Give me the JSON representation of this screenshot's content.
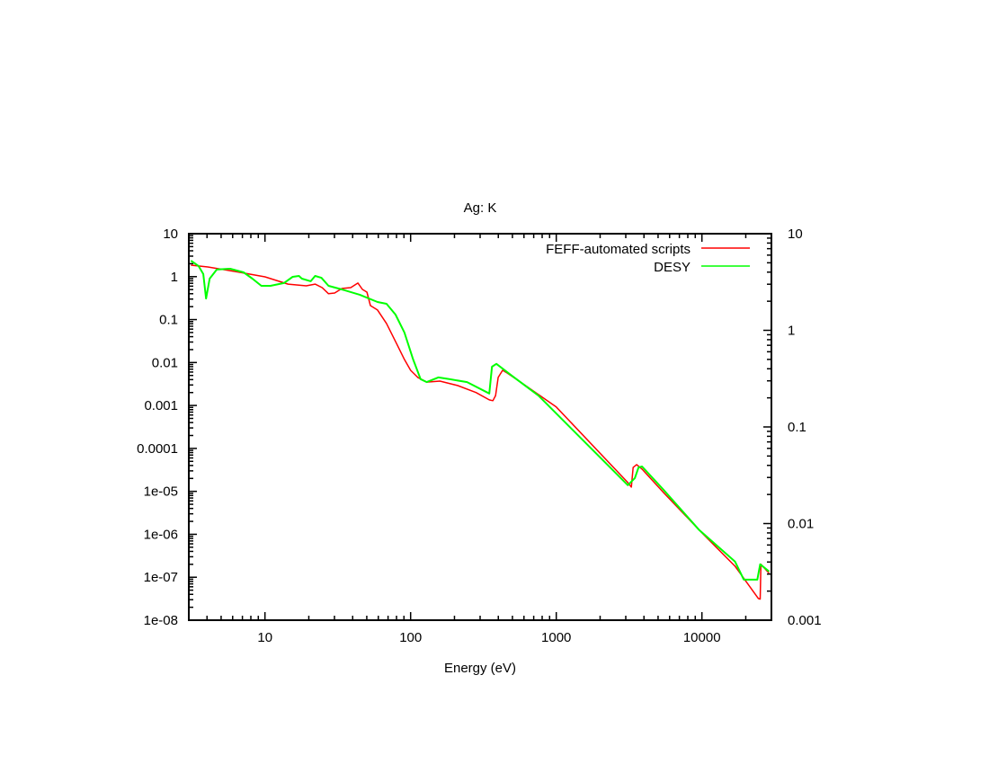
{
  "chart_data": {
    "type": "line",
    "title": "Ag: K",
    "xlabel": "Energy (eV)",
    "ylabel": "",
    "xscale": "log",
    "yscale": "log",
    "xlim": [
      3,
      30000
    ],
    "ylim": [
      1e-08,
      10
    ],
    "y2lim": [
      0.001,
      10
    ],
    "x_ticks": [
      "10",
      "100",
      "1000",
      "10000"
    ],
    "y_ticks": [
      "10",
      "1",
      "0.1",
      "0.01",
      "0.001",
      "0.0001",
      "1e-05",
      "1e-06",
      "1e-07",
      "1e-08"
    ],
    "y2_ticks": [
      "10",
      "1",
      "0.1",
      "0.01",
      "0.001"
    ],
    "grid": false,
    "legend_position": "top-right",
    "series": [
      {
        "name": "FEFF-automated scripts",
        "color": "#ff0000",
        "x": [
          3.1,
          4.05,
          6.2,
          10,
          14.4,
          19.2,
          22.1,
          24.7,
          27.3,
          30.1,
          33.7,
          38.8,
          43.5,
          46.7,
          50.1,
          53,
          59.3,
          68.3,
          78.7,
          90.6,
          100,
          112,
          129,
          159,
          211,
          281,
          347,
          367,
          383,
          399,
          428,
          460,
          569,
          1000,
          3100,
          3275,
          3370,
          3565,
          3880,
          5450,
          9600,
          16900,
          24400,
          25100,
          25400,
          28900
        ],
        "y": [
          1.85,
          1.68,
          1.32,
          0.99,
          0.67,
          0.61,
          0.67,
          0.556,
          0.4,
          0.416,
          0.53,
          0.556,
          0.71,
          0.505,
          0.437,
          0.212,
          0.167,
          0.081,
          0.031,
          0.0118,
          0.0066,
          0.0045,
          0.0035,
          0.0037,
          0.0029,
          0.002,
          0.00135,
          0.00129,
          0.0017,
          0.0045,
          0.0066,
          0.0057,
          0.0035,
          0.00092,
          1.6e-05,
          1.26e-05,
          3.6e-05,
          4.2e-05,
          3.3e-05,
          9.4e-06,
          1.25e-06,
          1.8e-07,
          3.2e-08,
          3.1e-08,
          2e-07,
          1.24e-07
        ]
      },
      {
        "name": "DESY",
        "color": "#00ff00",
        "x": [
          3.1,
          3.5,
          3.77,
          3.94,
          4.17,
          4.67,
          5.77,
          7.13,
          8.2,
          9.45,
          10.9,
          13.5,
          15.5,
          17.1,
          17.9,
          20.6,
          22.1,
          24.4,
          27.3,
          33.7,
          44.7,
          59.3,
          68.3,
          78.7,
          90.6,
          104,
          117,
          129,
          155,
          184,
          244,
          347,
          362,
          388,
          493,
          754,
          3100,
          3465,
          3670,
          3880,
          5450,
          9600,
          16900,
          19400,
          24000,
          25100,
          28900
        ],
        "y": [
          2.35,
          1.77,
          1.15,
          0.31,
          0.9,
          1.46,
          1.53,
          1.26,
          0.9,
          0.61,
          0.61,
          0.71,
          0.99,
          1.04,
          0.9,
          0.78,
          1.04,
          0.94,
          0.61,
          0.505,
          0.38,
          0.257,
          0.233,
          0.131,
          0.05,
          0.0118,
          0.0041,
          0.0035,
          0.0045,
          0.0041,
          0.0035,
          0.0019,
          0.008,
          0.0093,
          0.005,
          0.0017,
          1.39e-05,
          2.04e-05,
          3.6e-05,
          3.8e-05,
          1.09e-05,
          1.25e-06,
          2.3e-07,
          8.8e-08,
          8.8e-08,
          2e-07,
          1.36e-07
        ]
      }
    ]
  }
}
